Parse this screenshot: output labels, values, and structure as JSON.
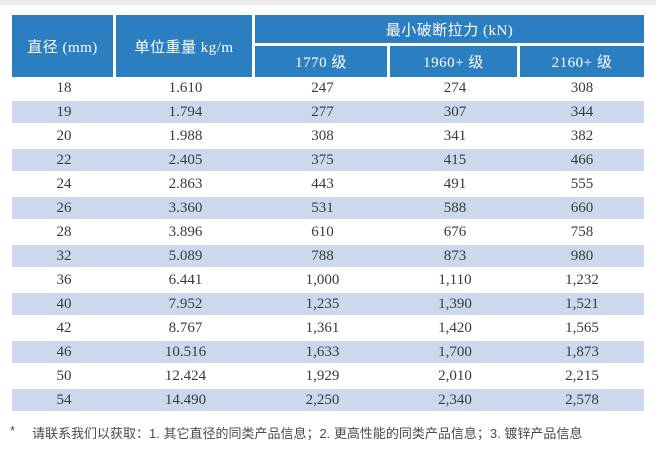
{
  "table": {
    "header": {
      "diameter": "直径 (mm)",
      "unit_weight": "单位重量 kg/m",
      "mbl_group": "最小破断拉力 (kN)",
      "grades": [
        "1770 级",
        "1960+ 级",
        "2160+ 级"
      ]
    },
    "rows": [
      [
        "18",
        "1.610",
        "247",
        "274",
        "308"
      ],
      [
        "19",
        "1.794",
        "277",
        "307",
        "344"
      ],
      [
        "20",
        "1.988",
        "308",
        "341",
        "382"
      ],
      [
        "22",
        "2.405",
        "375",
        "415",
        "466"
      ],
      [
        "24",
        "2.863",
        "443",
        "491",
        "555"
      ],
      [
        "26",
        "3.360",
        "531",
        "588",
        "660"
      ],
      [
        "28",
        "3.896",
        "610",
        "676",
        "758"
      ],
      [
        "32",
        "5.089",
        "788",
        "873",
        "980"
      ],
      [
        "36",
        "6.441",
        "1,000",
        "1,110",
        "1,232"
      ],
      [
        "40",
        "7.952",
        "1,235",
        "1,390",
        "1,521"
      ],
      [
        "42",
        "8.767",
        "1,361",
        "1,420",
        "1,565"
      ],
      [
        "46",
        "10.516",
        "1,633",
        "1,700",
        "1,873"
      ],
      [
        "50",
        "12.424",
        "1,929",
        "2,010",
        "2,215"
      ],
      [
        "54",
        "14.490",
        "2,250",
        "2,340",
        "2,578"
      ]
    ]
  },
  "footnote": {
    "marker": "*",
    "text": "请联系我们以获取：1. 其它直径的同类产品信息；2. 更高性能的同类产品信息；3. 镀锌产品信息"
  },
  "colors": {
    "header_bg": "#2b7ec0",
    "header_text": "#ffffff",
    "stripe_bg": "#ccd9ec",
    "body_text": "#3a3a3a",
    "top_strip": "#ececec"
  }
}
